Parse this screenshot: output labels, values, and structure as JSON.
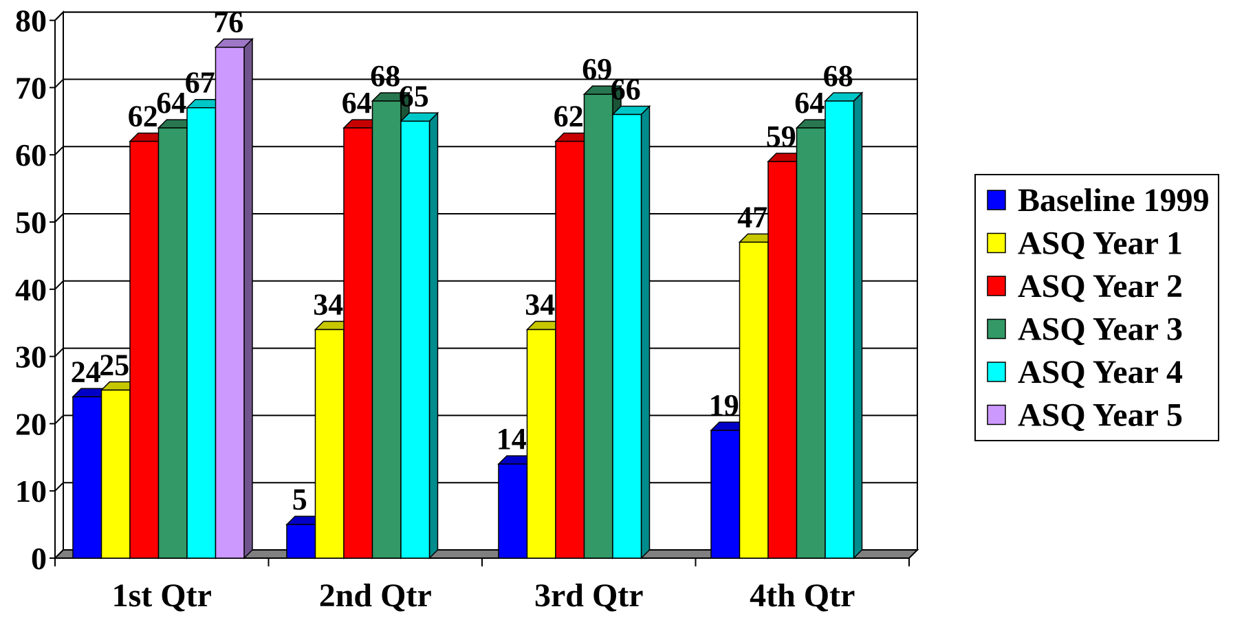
{
  "chart_data": {
    "type": "bar",
    "title": "",
    "xlabel": "",
    "ylabel": "",
    "ylim": [
      0,
      80
    ],
    "yticks": [
      0,
      10,
      20,
      30,
      40,
      50,
      60,
      70,
      80
    ],
    "grid": true,
    "legend_position": "right",
    "categories": [
      "1st Qtr",
      "2nd Qtr",
      "3rd Qtr",
      "4th Qtr"
    ],
    "series": [
      {
        "name": "Baseline 1999",
        "color": "#0000FF",
        "values": [
          24,
          5,
          14,
          19
        ]
      },
      {
        "name": "ASQ Year 1",
        "color": "#FFFF00",
        "values": [
          25,
          34,
          34,
          47
        ]
      },
      {
        "name": "ASQ Year 2",
        "color": "#FF0000",
        "values": [
          62,
          64,
          62,
          59
        ]
      },
      {
        "name": "ASQ Year 3",
        "color": "#339966",
        "values": [
          64,
          68,
          69,
          64
        ]
      },
      {
        "name": "ASQ Year 4",
        "color": "#00FFFF",
        "values": [
          67,
          65,
          66,
          68
        ]
      },
      {
        "name": "ASQ Year 5",
        "color": "#CC99FF",
        "values": [
          76,
          null,
          null,
          null
        ]
      }
    ]
  }
}
